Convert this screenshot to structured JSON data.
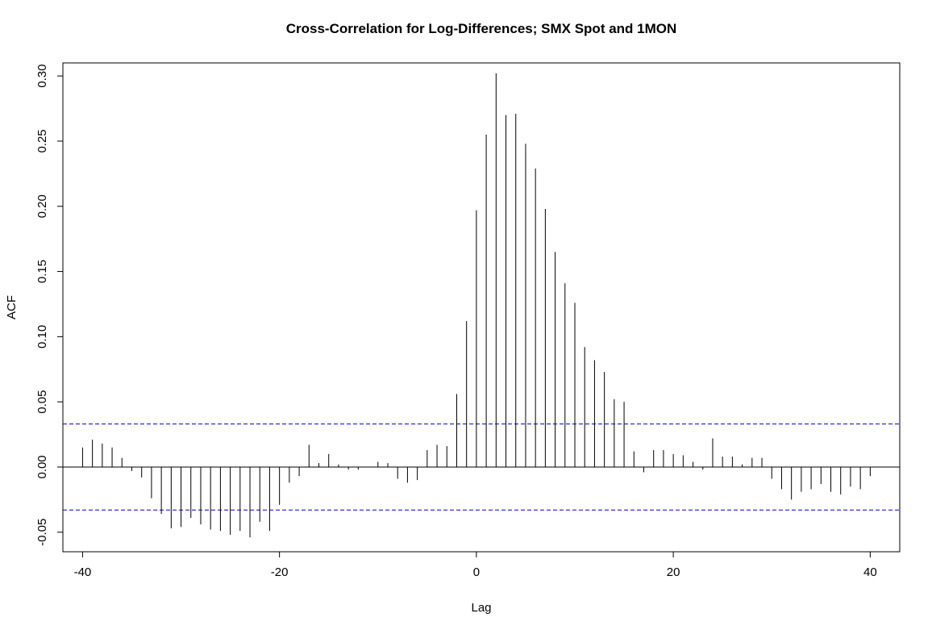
{
  "chart_data": {
    "type": "bar",
    "title": "Cross-Correlation for Log-Differences;  SMX Spot and 1MON",
    "xlabel": "Lag",
    "ylabel": "ACF",
    "xlim": [
      -42,
      43
    ],
    "ylim": [
      -0.065,
      0.31
    ],
    "x_ticks": [
      -40,
      -20,
      0,
      20,
      40
    ],
    "x_tick_labels": [
      "-40",
      "-20",
      "0",
      "20",
      "40"
    ],
    "y_ticks": [
      -0.05,
      0.0,
      0.05,
      0.1,
      0.15,
      0.2,
      0.25,
      0.3
    ],
    "y_tick_labels": [
      "-0.05",
      "0.00",
      "0.05",
      "0.10",
      "0.15",
      "0.20",
      "0.25",
      "0.30"
    ],
    "confidence_bound": 0.033,
    "zero_line": 0,
    "colors": {
      "bars": "#000000",
      "confidence": "#0000cc",
      "frame": "#000000"
    },
    "x": [
      -40,
      -39,
      -38,
      -37,
      -36,
      -35,
      -34,
      -33,
      -32,
      -31,
      -30,
      -29,
      -28,
      -27,
      -26,
      -25,
      -24,
      -23,
      -22,
      -21,
      -20,
      -19,
      -18,
      -17,
      -16,
      -15,
      -14,
      -13,
      -12,
      -11,
      -10,
      -9,
      -8,
      -7,
      -6,
      -5,
      -4,
      -3,
      -2,
      -1,
      0,
      1,
      2,
      3,
      4,
      5,
      6,
      7,
      8,
      9,
      10,
      11,
      12,
      13,
      14,
      15,
      16,
      17,
      18,
      19,
      20,
      21,
      22,
      23,
      24,
      25,
      26,
      27,
      28,
      29,
      30,
      31,
      32,
      33,
      34,
      35,
      36,
      37,
      38,
      39,
      40
    ],
    "values": [
      0.015,
      0.021,
      0.018,
      0.015,
      0.007,
      -0.003,
      -0.008,
      -0.024,
      -0.036,
      -0.047,
      -0.046,
      -0.039,
      -0.044,
      -0.048,
      -0.049,
      -0.052,
      -0.049,
      -0.054,
      -0.042,
      -0.049,
      -0.029,
      -0.012,
      -0.007,
      0.017,
      0.003,
      0.01,
      0.002,
      -0.002,
      -0.002,
      0.0,
      0.004,
      0.003,
      -0.009,
      -0.012,
      -0.01,
      0.013,
      0.017,
      0.016,
      0.056,
      0.112,
      0.197,
      0.255,
      0.302,
      0.27,
      0.271,
      0.248,
      0.229,
      0.198,
      0.165,
      0.141,
      0.126,
      0.092,
      0.082,
      0.073,
      0.052,
      0.05,
      0.012,
      -0.004,
      0.013,
      0.013,
      0.01,
      0.009,
      0.004,
      -0.002,
      0.022,
      0.008,
      0.008,
      0.002,
      0.007,
      0.007,
      -0.009,
      -0.017,
      -0.025,
      -0.019,
      -0.017,
      -0.013,
      -0.019,
      -0.021,
      -0.015,
      -0.017,
      -0.007
    ]
  }
}
